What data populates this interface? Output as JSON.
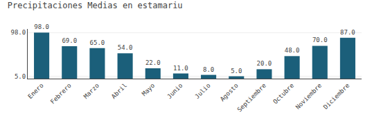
{
  "chart_data": {
    "type": "bar",
    "title": "Precipitaciones Medias en estamariu",
    "categories": [
      "Enero",
      "Febrero",
      "Marzo",
      "Abril",
      "Mayo",
      "Junio",
      "Julio",
      "Agosto",
      "Septiembre",
      "Octubre",
      "Noviembre",
      "Diciembre"
    ],
    "values": [
      98.0,
      69.0,
      65.0,
      54.0,
      22.0,
      11.0,
      8.0,
      5.0,
      20.0,
      48.0,
      70.0,
      87.0
    ],
    "value_labels": [
      "98.0",
      "69.0",
      "65.0",
      "54.0",
      "22.0",
      "11.0",
      "8.0",
      "5.0",
      "20.0",
      "48.0",
      "70.0",
      "87.0"
    ],
    "data_labels": true,
    "color": "#1b5f7a",
    "ylim": [
      0,
      105.84
    ],
    "yticks": [
      {
        "value": 5.0,
        "label": "5.0"
      },
      {
        "value": 98.0,
        "label": "98.0"
      }
    ],
    "grid": true
  }
}
